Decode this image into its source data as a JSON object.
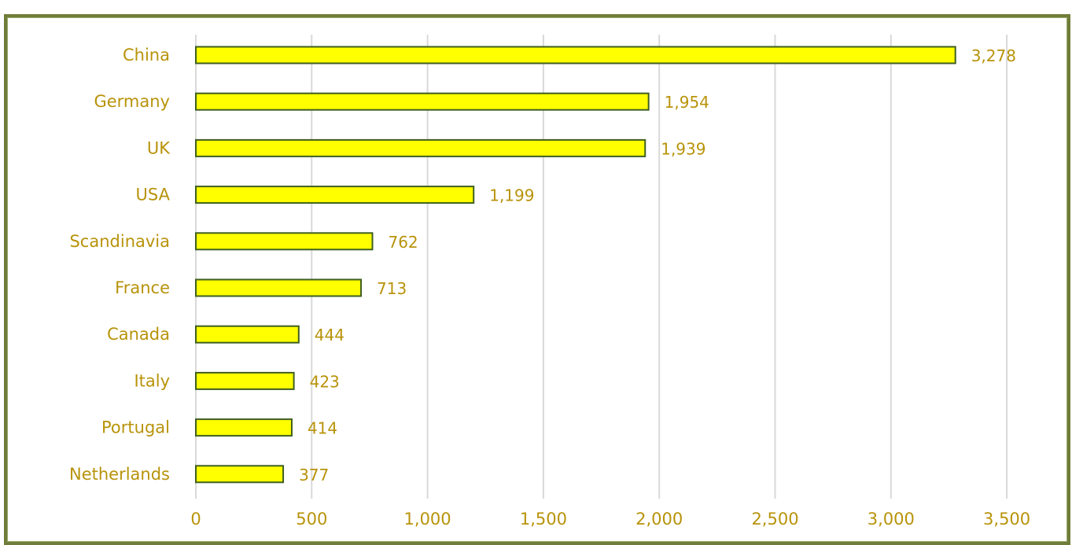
{
  "chart_data": {
    "type": "bar",
    "orientation": "horizontal",
    "title": "",
    "xlabel": "",
    "ylabel": "",
    "categories": [
      "China",
      "Germany",
      "UK",
      "USA",
      "Scandinavia",
      "France",
      "Canada",
      "Italy",
      "Portugal",
      "Netherlands"
    ],
    "values": [
      3278,
      1954,
      1939,
      1199,
      762,
      713,
      444,
      423,
      414,
      377
    ],
    "value_labels": [
      "3,278",
      "1,954",
      "1,939",
      "1,199",
      "762",
      "713",
      "444",
      "423",
      "414",
      "377"
    ],
    "xlim": [
      0,
      3500
    ],
    "ticks": [
      0,
      500,
      1000,
      1500,
      2000,
      2500,
      3000,
      3500
    ],
    "tick_labels": [
      "0",
      "500",
      "1,000",
      "1,500",
      "2,000",
      "2,500",
      "3,000",
      "3,500"
    ],
    "grid": true,
    "legend": "none",
    "colors": {
      "bar_fill": "#ffff00",
      "bar_stroke": "#3f5f1f",
      "text": "#b8930a",
      "grid": "#d9d9d9",
      "frame": "#6f7d3a"
    }
  }
}
